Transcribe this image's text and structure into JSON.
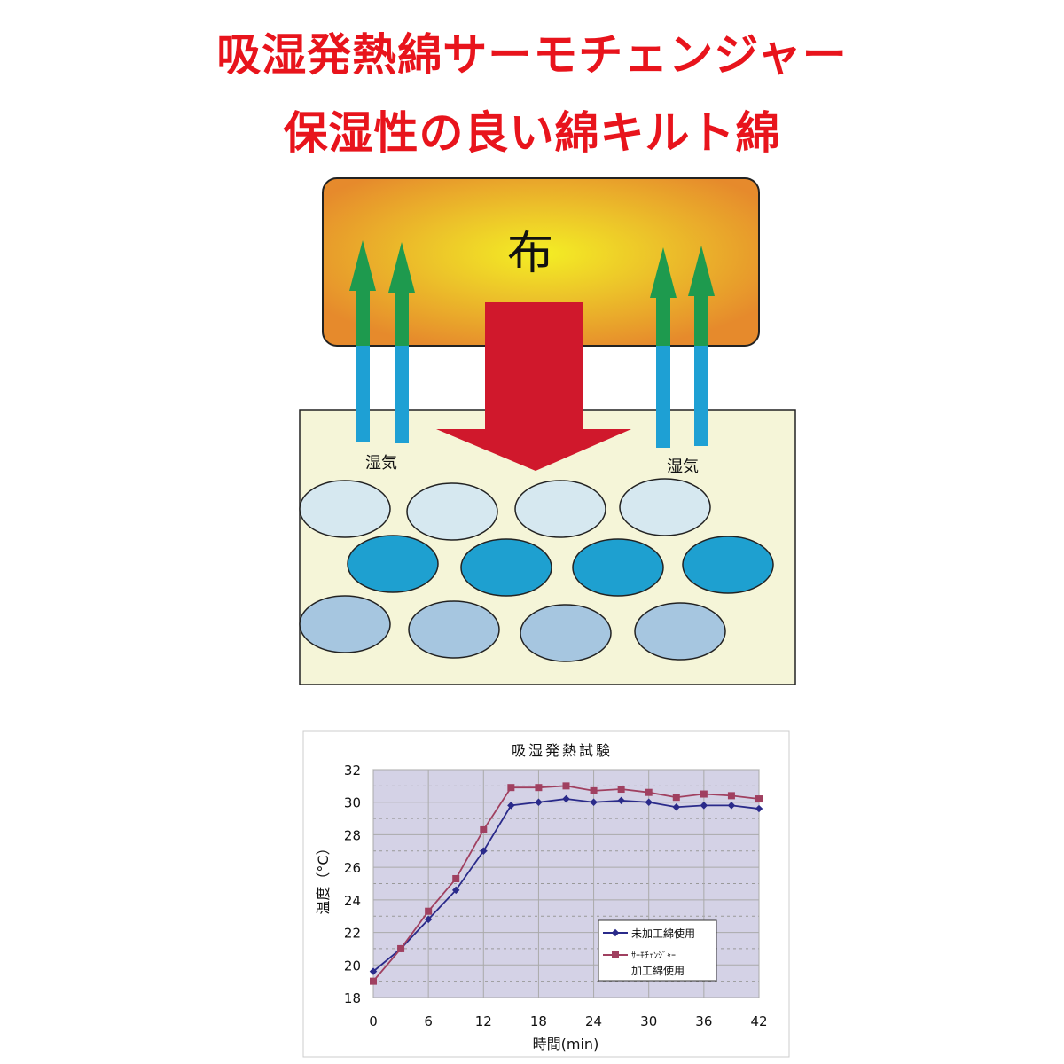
{
  "titles": {
    "line1": "吸湿発熱綿サーモチェンジャー",
    "line2": "保湿性の良い綿キルト綿"
  },
  "diagram": {
    "fabric_label": "布",
    "moisture_label_left": "湿気",
    "moisture_label_right": "湿気",
    "colors": {
      "heat_arrow": "#d0182c",
      "moisture_arrow_top": "#1e9a4e",
      "moisture_arrow_bottom": "#1ea0d4",
      "fabric_center": "#f2ec22",
      "fabric_edge": "#e88c2a",
      "cotton_fill": "#f5f5d8"
    }
  },
  "chart_data": {
    "type": "line",
    "title": "吸湿発熱試験",
    "xlabel": "時間(min)",
    "ylabel": "温度（°C）",
    "xlim": [
      0,
      42
    ],
    "ylim": [
      18,
      32
    ],
    "xticks": [
      0,
      6,
      12,
      18,
      24,
      30,
      36,
      42
    ],
    "yticks": [
      18,
      20,
      22,
      24,
      26,
      28,
      30,
      32
    ],
    "grid": true,
    "legend_position": "bottom-right",
    "x": [
      0,
      3,
      6,
      9,
      12,
      15,
      18,
      21,
      24,
      27,
      30,
      33,
      36,
      39,
      42
    ],
    "series": [
      {
        "name": "未加工綿使用",
        "color": "#2a2a8a",
        "marker": "diamond",
        "values": [
          19.6,
          21.0,
          22.8,
          24.6,
          27.0,
          29.8,
          30.0,
          30.2,
          30.0,
          30.1,
          30.0,
          29.7,
          29.8,
          29.8,
          29.6
        ]
      },
      {
        "name": "サーモチェンジャー 加工綿使用",
        "name_line1": "ｻｰﾓﾁｪﾝｼﾞｬｰ",
        "name_line2": "加工綿使用",
        "color": "#a04060",
        "marker": "square",
        "values": [
          19.0,
          21.0,
          23.3,
          25.3,
          28.3,
          30.9,
          30.9,
          31.0,
          30.7,
          30.8,
          30.6,
          30.3,
          30.5,
          30.4,
          30.2
        ]
      }
    ]
  }
}
